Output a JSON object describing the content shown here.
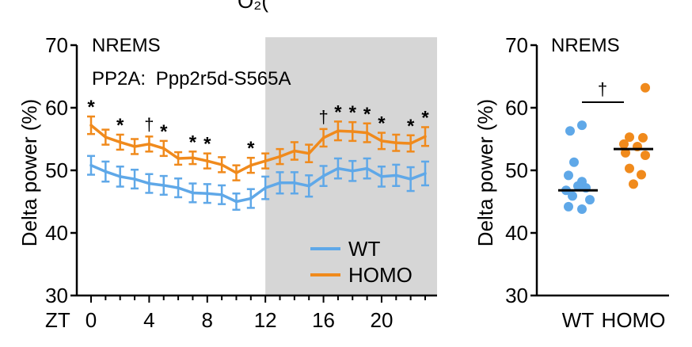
{
  "header": {
    "clipped_text": "O₂("
  },
  "chart_data": [
    {
      "type": "line",
      "panel_title": "NREMS",
      "subtitle_prefix": "PP2A:",
      "subtitle_gene": "Ppp2r5d-S565A",
      "ylabel": "Delta power (%)",
      "xlabel": "ZT",
      "ylim": [
        30,
        70
      ],
      "yticks": [
        30,
        40,
        50,
        60,
        70
      ],
      "xlim": [
        0,
        23
      ],
      "xticks": [
        0,
        4,
        8,
        12,
        16,
        20
      ],
      "dark_phase": [
        12,
        23.5
      ],
      "x": [
        0,
        1,
        2,
        3,
        4,
        5,
        6,
        7,
        8,
        9,
        10,
        11,
        12,
        13,
        14,
        15,
        16,
        17,
        18,
        19,
        20,
        21,
        22,
        23
      ],
      "series": [
        {
          "name": "WT",
          "color": "#5fa8e8",
          "values": [
            50.8,
            49.8,
            49.0,
            48.6,
            47.9,
            47.6,
            47.2,
            46.4,
            46.3,
            46.1,
            45.0,
            45.5,
            47.2,
            48.0,
            48.0,
            47.5,
            49.1,
            50.3,
            49.9,
            50.3,
            49.0,
            49.2,
            48.6,
            49.5
          ],
          "errors": [
            1.5,
            1.6,
            1.6,
            1.5,
            1.5,
            1.5,
            1.5,
            1.5,
            1.5,
            1.5,
            1.3,
            1.5,
            1.8,
            1.7,
            1.7,
            1.7,
            1.6,
            1.6,
            1.6,
            1.6,
            1.6,
            1.7,
            1.9,
            1.9
          ]
        },
        {
          "name": "HOMO",
          "color": "#f08a1c",
          "values": [
            57.2,
            55.3,
            54.5,
            53.8,
            54.2,
            53.5,
            51.9,
            52.0,
            51.5,
            50.9,
            49.6,
            50.8,
            51.5,
            52.2,
            53.1,
            52.7,
            55.2,
            56.3,
            56.2,
            56.0,
            54.7,
            54.4,
            54.3,
            55.4
          ],
          "errors": [
            1.4,
            1.2,
            1.2,
            1.2,
            1.2,
            1.2,
            1.0,
            1.0,
            1.2,
            1.2,
            1.2,
            1.2,
            1.2,
            1.2,
            1.4,
            1.4,
            1.4,
            1.5,
            1.5,
            1.5,
            1.3,
            1.3,
            1.3,
            1.5
          ]
        }
      ],
      "significance": [
        {
          "x": 0,
          "mark": "*"
        },
        {
          "x": 2,
          "mark": "*"
        },
        {
          "x": 4,
          "mark": "†"
        },
        {
          "x": 5,
          "mark": "*"
        },
        {
          "x": 7,
          "mark": "*"
        },
        {
          "x": 8,
          "mark": "*"
        },
        {
          "x": 11,
          "mark": "*"
        },
        {
          "x": 16,
          "mark": "†"
        },
        {
          "x": 17,
          "mark": "*"
        },
        {
          "x": 18,
          "mark": "*"
        },
        {
          "x": 19,
          "mark": "*"
        },
        {
          "x": 20,
          "mark": "*"
        },
        {
          "x": 22,
          "mark": "*"
        },
        {
          "x": 23,
          "mark": "*"
        }
      ],
      "legend": [
        "WT",
        "HOMO"
      ],
      "legend_position": "bottom-right"
    },
    {
      "type": "scatter",
      "panel_title": "NREMS",
      "ylabel": "Delta power (%)",
      "ylim": [
        30,
        70
      ],
      "yticks": [
        30,
        40,
        50,
        60,
        70
      ],
      "categories": [
        "WT",
        "HOMO"
      ],
      "groups": [
        {
          "name": "WT",
          "color": "#5fa8e8",
          "mean": 46.8,
          "points": [
            {
              "dx": -0.1,
              "y": 56.3
            },
            {
              "dx": 0.05,
              "y": 57.2
            },
            {
              "dx": -0.05,
              "y": 51.3
            },
            {
              "dx": -0.12,
              "y": 49.2
            },
            {
              "dx": 0.05,
              "y": 48.2
            },
            {
              "dx": 0.1,
              "y": 47.2
            },
            {
              "dx": -0.15,
              "y": 46.8
            },
            {
              "dx": -0.07,
              "y": 45.9
            },
            {
              "dx": 0.15,
              "y": 45.3
            },
            {
              "dx": -0.12,
              "y": 44.2
            },
            {
              "dx": 0.05,
              "y": 43.8
            },
            {
              "dx": 0.0,
              "y": 47.5
            }
          ]
        },
        {
          "name": "HOMO",
          "color": "#f08a1c",
          "mean": 53.4,
          "points": [
            {
              "dx": 0.15,
              "y": 63.2
            },
            {
              "dx": -0.05,
              "y": 55.3
            },
            {
              "dx": 0.12,
              "y": 55.2
            },
            {
              "dx": -0.12,
              "y": 54.2
            },
            {
              "dx": 0.05,
              "y": 53.8
            },
            {
              "dx": -0.1,
              "y": 52.8
            },
            {
              "dx": 0.15,
              "y": 52.4
            },
            {
              "dx": -0.05,
              "y": 50.3
            },
            {
              "dx": 0.1,
              "y": 49.3
            },
            {
              "dx": 0.0,
              "y": 47.8
            }
          ]
        }
      ],
      "comparison_mark": "†"
    }
  ]
}
